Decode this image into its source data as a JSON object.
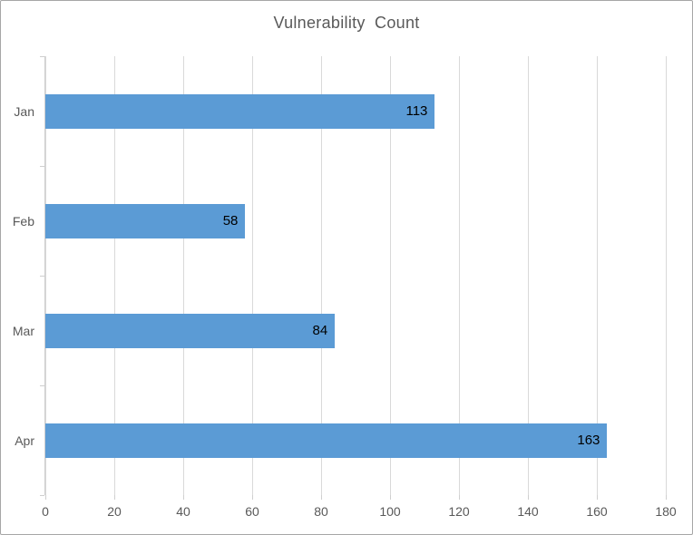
{
  "chart_data": {
    "type": "bar",
    "orientation": "horizontal",
    "title": "Vulnerability Count",
    "categories": [
      "Jan",
      "Feb",
      "Mar",
      "Apr"
    ],
    "values": [
      113,
      58,
      84,
      163
    ],
    "value_labels": [
      "113",
      "58",
      "84",
      "163"
    ],
    "xlabel": "",
    "ylabel": "",
    "xlim": [
      0,
      180
    ],
    "xticks": [
      0,
      20,
      40,
      60,
      80,
      100,
      120,
      140,
      160,
      180
    ],
    "grid": true,
    "legend": false
  },
  "colors": {
    "bar": "#5b9bd5",
    "gridline": "#d9d9d9",
    "axis": "#cfcfcf",
    "title_text": "#595959",
    "axis_text": "#595959",
    "value_text": "#000000",
    "border": "#a6a6a6",
    "background": "#ffffff"
  }
}
